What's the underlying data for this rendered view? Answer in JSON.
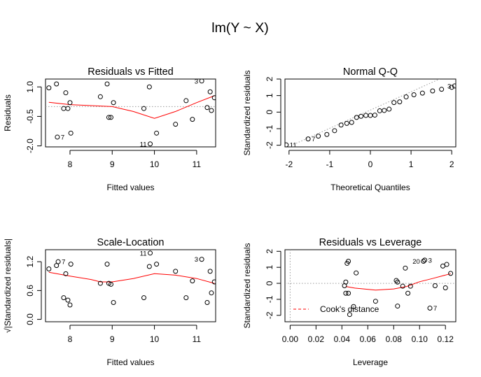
{
  "figure": {
    "main_title": "lm(Y ~ X)"
  },
  "chart_data": [
    {
      "id": "rvf",
      "type": "scatter",
      "title": "Residuals vs Fitted",
      "xlabel": "Fitted values",
      "ylabel": "Residuals",
      "xlim": [
        7.42,
        11.45
      ],
      "ylim": [
        -2.05,
        1.4
      ],
      "xticks": [
        8,
        9,
        10,
        11
      ],
      "xtick_labels": [
        "8",
        "9",
        "10",
        "11"
      ],
      "yticks": [
        -2.0,
        -0.5,
        1.0
      ],
      "ytick_labels": [
        "-2.0",
        "-0.5",
        "1.0"
      ],
      "ytick_rotated": true,
      "refline": {
        "type": "h",
        "value": 0,
        "style": "dotted"
      },
      "points": [
        [
          7.5,
          0.95
        ],
        [
          7.68,
          1.15
        ],
        [
          7.7,
          -1.55
        ],
        [
          7.85,
          -0.1
        ],
        [
          7.9,
          0.7
        ],
        [
          7.95,
          -0.1
        ],
        [
          8.0,
          0.2
        ],
        [
          8.02,
          -1.35
        ],
        [
          8.72,
          0.5
        ],
        [
          8.88,
          1.15
        ],
        [
          8.92,
          -0.55
        ],
        [
          8.97,
          -0.55
        ],
        [
          9.03,
          0.2
        ],
        [
          9.75,
          -0.1
        ],
        [
          9.88,
          1.0
        ],
        [
          9.9,
          -1.9
        ],
        [
          10.05,
          -1.35
        ],
        [
          10.5,
          -0.9
        ],
        [
          10.75,
          0.3
        ],
        [
          10.9,
          -0.65
        ],
        [
          11.12,
          1.3
        ],
        [
          11.25,
          -0.05
        ],
        [
          11.32,
          0.75
        ],
        [
          11.35,
          -0.2
        ],
        [
          11.42,
          0.45
        ]
      ],
      "smooth": [
        [
          7.5,
          0.22
        ],
        [
          8.0,
          0.1
        ],
        [
          8.5,
          0.05
        ],
        [
          9.0,
          0.0
        ],
        [
          9.5,
          -0.25
        ],
        [
          10.0,
          -0.6
        ],
        [
          10.5,
          -0.25
        ],
        [
          11.0,
          0.2
        ],
        [
          11.42,
          0.55
        ]
      ],
      "labels": [
        {
          "x": 7.7,
          "y": -1.55,
          "text": "7",
          "side": "right"
        },
        {
          "x": 9.9,
          "y": -1.9,
          "text": "11",
          "side": "left"
        },
        {
          "x": 11.12,
          "y": 1.3,
          "text": "3",
          "side": "left"
        }
      ]
    },
    {
      "id": "qq",
      "type": "scatter",
      "title": "Normal Q-Q",
      "xlabel": "Theoretical Quantiles",
      "ylabel": "Standardized residuals",
      "xlim": [
        -2.1,
        2.1
      ],
      "ylim": [
        -2.1,
        2.0
      ],
      "xticks": [
        -2,
        -1,
        0,
        1,
        2
      ],
      "xtick_labels": [
        "-2",
        "-1",
        "0",
        "1",
        "2"
      ],
      "yticks": [
        -2,
        -1,
        0,
        1,
        2
      ],
      "ytick_labels": [
        "-2",
        "-1",
        "0",
        "1",
        "2"
      ],
      "ytick_rotated": true,
      "refline": {
        "type": "line",
        "from": [
          -2.2,
          -2.3
        ],
        "to": [
          1.7,
          2.0
        ],
        "style": "dotted"
      },
      "points": [
        [
          -2.07,
          -1.98
        ],
        [
          -1.53,
          -1.62
        ],
        [
          -1.28,
          -1.45
        ],
        [
          -1.07,
          -1.35
        ],
        [
          -0.88,
          -1.12
        ],
        [
          -0.72,
          -0.78
        ],
        [
          -0.58,
          -0.68
        ],
        [
          -0.46,
          -0.62
        ],
        [
          -0.34,
          -0.32
        ],
        [
          -0.23,
          -0.25
        ],
        [
          -0.11,
          -0.2
        ],
        [
          0.0,
          -0.2
        ],
        [
          0.11,
          -0.18
        ],
        [
          0.23,
          0.08
        ],
        [
          0.34,
          0.1
        ],
        [
          0.46,
          0.18
        ],
        [
          0.58,
          0.58
        ],
        [
          0.72,
          0.62
        ],
        [
          0.88,
          0.92
        ],
        [
          1.07,
          1.05
        ],
        [
          1.28,
          1.15
        ],
        [
          1.53,
          1.28
        ],
        [
          1.75,
          1.38
        ],
        [
          2.0,
          1.5
        ],
        [
          2.07,
          1.58
        ]
      ],
      "labels": [
        {
          "x": -2.07,
          "y": -1.98,
          "text": "11",
          "side": "right"
        },
        {
          "x": -1.53,
          "y": -1.62,
          "text": "7",
          "side": "right"
        },
        {
          "x": 2.07,
          "y": 1.58,
          "text": "3",
          "side": "left"
        }
      ]
    },
    {
      "id": "sl",
      "type": "scatter",
      "title": "Scale-Location",
      "xlabel": "Fitted values",
      "ylabel": "√|Standardized residuals|",
      "xlim": [
        7.42,
        11.45
      ],
      "ylim": [
        -0.05,
        1.45
      ],
      "xticks": [
        8,
        9,
        10,
        11
      ],
      "xtick_labels": [
        "8",
        "9",
        "10",
        "11"
      ],
      "yticks": [
        0.0,
        0.6,
        1.2
      ],
      "ytick_labels": [
        "0.0",
        "0.6",
        "1.2"
      ],
      "ytick_rotated": true,
      "points": [
        [
          7.5,
          1.05
        ],
        [
          7.68,
          1.12
        ],
        [
          7.72,
          1.2
        ],
        [
          7.85,
          0.45
        ],
        [
          7.9,
          0.95
        ],
        [
          7.95,
          0.4
        ],
        [
          8.0,
          0.3
        ],
        [
          8.02,
          1.15
        ],
        [
          8.72,
          0.75
        ],
        [
          8.88,
          1.15
        ],
        [
          8.92,
          0.75
        ],
        [
          8.97,
          0.73
        ],
        [
          9.03,
          0.35
        ],
        [
          9.75,
          0.45
        ],
        [
          9.88,
          1.1
        ],
        [
          9.9,
          1.38
        ],
        [
          10.05,
          1.15
        ],
        [
          10.5,
          1.0
        ],
        [
          10.75,
          0.45
        ],
        [
          10.9,
          0.8
        ],
        [
          11.12,
          1.25
        ],
        [
          11.25,
          0.35
        ],
        [
          11.32,
          1.0
        ],
        [
          11.35,
          0.55
        ],
        [
          11.42,
          0.78
        ]
      ],
      "smooth": [
        [
          7.5,
          0.98
        ],
        [
          8.0,
          0.9
        ],
        [
          8.5,
          0.83
        ],
        [
          8.72,
          0.78
        ],
        [
          9.0,
          0.78
        ],
        [
          9.5,
          0.85
        ],
        [
          10.0,
          0.95
        ],
        [
          10.5,
          0.92
        ],
        [
          11.0,
          0.85
        ],
        [
          11.42,
          0.75
        ]
      ],
      "labels": [
        {
          "x": 7.72,
          "y": 1.2,
          "text": "7",
          "side": "right"
        },
        {
          "x": 9.9,
          "y": 1.38,
          "text": "11",
          "side": "left"
        },
        {
          "x": 11.12,
          "y": 1.25,
          "text": "3",
          "side": "left"
        }
      ]
    },
    {
      "id": "rvl",
      "type": "scatter",
      "title": "Residuals vs Leverage",
      "xlabel": "Leverage",
      "ylabel": "Standardized residuals",
      "xlim": [
        -0.004,
        0.128
      ],
      "ylim": [
        -2.4,
        2.1
      ],
      "xticks": [
        0.0,
        0.02,
        0.04,
        0.06,
        0.08,
        0.1,
        0.12
      ],
      "xtick_labels": [
        "0.00",
        "0.02",
        "0.04",
        "0.06",
        "0.08",
        "0.10",
        "0.12"
      ],
      "yticks": [
        -2,
        -1,
        0,
        1,
        2
      ],
      "ytick_labels": [
        "-2",
        "-1",
        "0",
        "1",
        "2"
      ],
      "ytick_rotated": true,
      "refline": {
        "type": "h",
        "value": 0,
        "style": "dotted"
      },
      "refline_v": {
        "value": 0,
        "style": "dotted"
      },
      "points": [
        [
          0.042,
          -0.15
        ],
        [
          0.043,
          0.08
        ],
        [
          0.043,
          -0.62
        ],
        [
          0.044,
          1.25
        ],
        [
          0.045,
          -0.62
        ],
        [
          0.045,
          1.38
        ],
        [
          0.046,
          -1.95
        ],
        [
          0.049,
          -1.45
        ],
        [
          0.051,
          0.65
        ],
        [
          0.066,
          -1.12
        ],
        [
          0.082,
          0.18
        ],
        [
          0.083,
          0.08
        ],
        [
          0.083,
          -1.42
        ],
        [
          0.087,
          -0.18
        ],
        [
          0.089,
          0.95
        ],
        [
          0.091,
          -0.62
        ],
        [
          0.093,
          -0.18
        ],
        [
          0.103,
          1.38
        ],
        [
          0.104,
          1.45
        ],
        [
          0.108,
          -1.55
        ],
        [
          0.112,
          -0.15
        ],
        [
          0.118,
          1.08
        ],
        [
          0.12,
          -0.28
        ],
        [
          0.121,
          1.18
        ],
        [
          0.124,
          0.62
        ]
      ],
      "smooth": [
        [
          0.043,
          -0.2
        ],
        [
          0.05,
          -0.3
        ],
        [
          0.066,
          -0.42
        ],
        [
          0.08,
          -0.35
        ],
        [
          0.09,
          -0.2
        ],
        [
          0.1,
          0.1
        ],
        [
          0.11,
          0.3
        ],
        [
          0.124,
          0.6
        ]
      ],
      "labels": [
        {
          "x": 0.103,
          "y": 1.38,
          "text": "20",
          "side": "left"
        },
        {
          "x": 0.104,
          "y": 1.45,
          "text": "3",
          "side": "right"
        },
        {
          "x": 0.108,
          "y": -1.55,
          "text": "7",
          "side": "right"
        }
      ],
      "legend": {
        "entries": [
          "Cook's distance"
        ],
        "position": "bottom-left"
      }
    }
  ]
}
